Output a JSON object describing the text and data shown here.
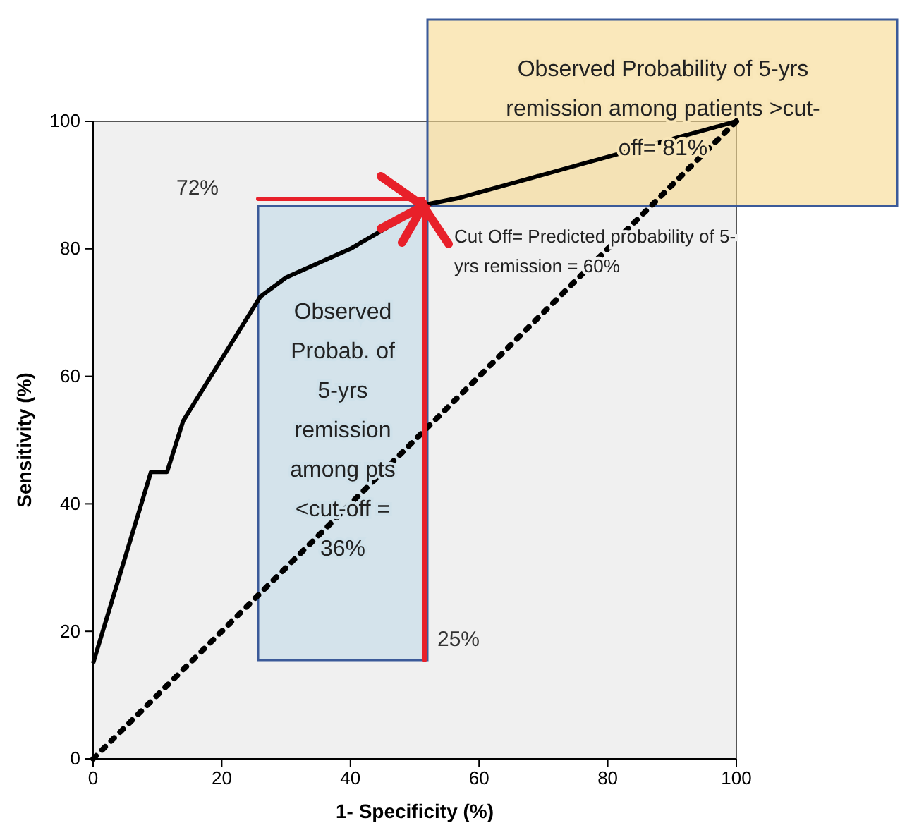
{
  "chart_data": {
    "type": "line",
    "xlabel": "1- Specificity (%)",
    "ylabel": "Sensitivity (%)",
    "xlim": [
      0,
      100
    ],
    "ylim": [
      0,
      100
    ],
    "xticks": [
      0,
      20,
      40,
      60,
      80,
      100
    ],
    "yticks": [
      0,
      20,
      40,
      60,
      80,
      100
    ],
    "grid": false,
    "marker": "none",
    "series": [
      {
        "color": "#000000",
        "line_style": "solid",
        "x": [
          0,
          9,
          11.5,
          14,
          26,
          30,
          40,
          52,
          57,
          100
        ],
        "values": [
          15,
          45,
          45,
          53,
          72.5,
          75.5,
          80,
          87,
          88,
          100
        ]
      },
      {
        "color": "#000000",
        "line_style": "dotted",
        "x": [
          0,
          100
        ],
        "values": [
          0,
          100
        ]
      }
    ],
    "annotations": [
      "Observed Probability of 5-yrs remission among patients >cut-off= 81%",
      "Observed Probab. of 5-yrs remission among pts <cut-off = 36%",
      "72%",
      "25%",
      "Cut Off= Predicted probability of 5-yrs remission = 60%"
    ]
  }
}
